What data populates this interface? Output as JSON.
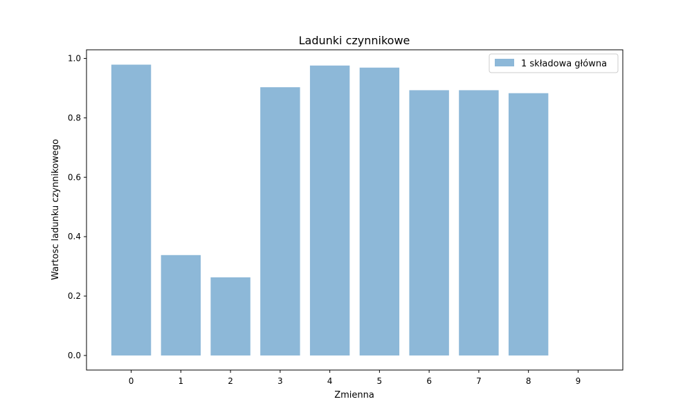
{
  "chart_data": {
    "type": "bar",
    "title": "Ladunki czynnikowe",
    "xlabel": "Zmienna",
    "ylabel": "Wartosc ladunku czynnikowego",
    "x_ticks": [
      "0",
      "1",
      "2",
      "3",
      "4",
      "5",
      "6",
      "7",
      "8",
      "9"
    ],
    "y_ticks": [
      "0.0",
      "0.2",
      "0.4",
      "0.6",
      "0.8",
      "1.0"
    ],
    "xlim": [
      -0.9,
      9.9
    ],
    "ylim": [
      -0.049,
      1.029
    ],
    "grid": false,
    "legend_position": "top-right",
    "series": [
      {
        "name": "1 składowa główna",
        "color": "#8db8d8",
        "categories": [
          0,
          1,
          2,
          3,
          4,
          5,
          6,
          7,
          8
        ],
        "values": [
          0.979,
          0.338,
          0.263,
          0.903,
          0.976,
          0.969,
          0.893,
          0.893,
          0.883
        ]
      }
    ]
  }
}
